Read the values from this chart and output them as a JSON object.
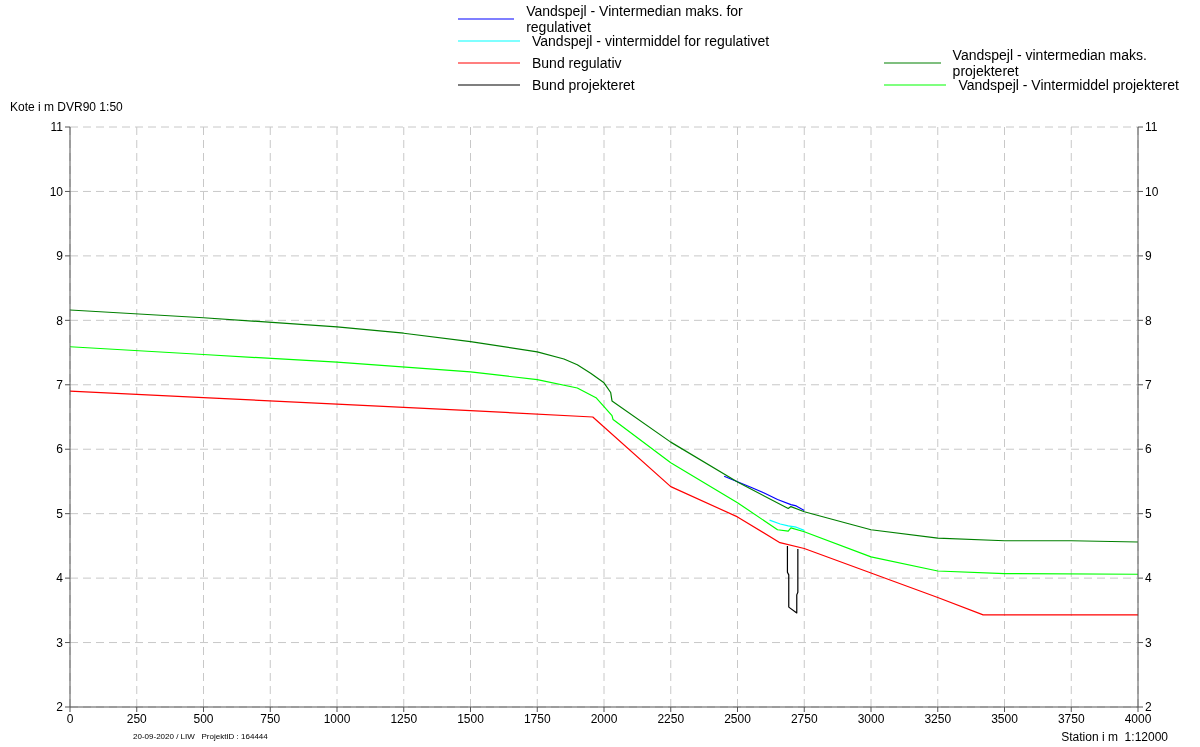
{
  "chart_data": {
    "type": "line",
    "ylabel": "Kote i m DVR90 1:50",
    "xlabel": "Station i m  1:12000",
    "annotations": [
      "20-09-2020 / LIW   ProjektID : 164444"
    ],
    "xlim": [
      0,
      4000
    ],
    "xticks": [
      0,
      250,
      500,
      750,
      1000,
      1250,
      1500,
      1750,
      2000,
      2250,
      2500,
      2750,
      3000,
      3250,
      3500,
      3750,
      4000
    ],
    "ylim": [
      2,
      11
    ],
    "yticks": [
      2,
      3,
      4,
      5,
      6,
      7,
      8,
      9,
      10,
      11
    ],
    "y2lim": [
      2,
      11
    ],
    "y2ticks": [
      2,
      3,
      4,
      5,
      6,
      7,
      8,
      9,
      10,
      11
    ],
    "grid": true,
    "legend": "top",
    "marker": "none",
    "line_style": "solid",
    "series": [
      {
        "name": "Vandspejl - Vintermedian maks. for regulativet",
        "color": "#0000ff",
        "x": [
          2450,
          2550,
          2600,
          2650,
          2700,
          2720,
          2750
        ],
        "values": [
          5.58,
          5.41,
          5.32,
          5.22,
          5.14,
          5.12,
          5.05
        ]
      },
      {
        "name": "Vandspejl - vintermiddel for regulativet",
        "color": "#00ffff",
        "x": [
          2620,
          2660,
          2690,
          2720,
          2750
        ],
        "values": [
          4.9,
          4.84,
          4.81,
          4.79,
          4.74
        ]
      },
      {
        "name": "Bund regulativ",
        "color": "#ff0000",
        "x": [
          0,
          500,
          1000,
          1500,
          1958,
          2250,
          2500,
          2659,
          2750,
          3000,
          3250,
          3420,
          4000
        ],
        "values": [
          6.9,
          6.8,
          6.7,
          6.6,
          6.5,
          5.42,
          4.95,
          4.55,
          4.46,
          4.08,
          3.7,
          3.43,
          3.43
        ]
      },
      {
        "name": "Bund projekteret",
        "color": "#000000",
        "x": [
          2687,
          2687,
          2692,
          2692,
          2722,
          2722,
          2726,
          2726
        ],
        "values": [
          4.5,
          4.09,
          4.05,
          3.55,
          3.46,
          3.74,
          3.78,
          4.45
        ]
      },
      {
        "name": "Vandspejl - vintermedian maks. projekteret",
        "color": "#008000",
        "x": [
          0,
          500,
          1000,
          1250,
          1500,
          1750,
          1850,
          1900,
          1950,
          2000,
          2025,
          2030,
          2250,
          2500,
          2690,
          2700,
          2750,
          2920,
          3000,
          3250,
          3500,
          3750,
          4000
        ],
        "values": [
          8.16,
          8.04,
          7.9,
          7.8,
          7.67,
          7.51,
          7.4,
          7.31,
          7.18,
          7.03,
          6.88,
          6.75,
          6.11,
          5.49,
          5.08,
          5.11,
          5.03,
          4.84,
          4.75,
          4.62,
          4.58,
          4.58,
          4.56
        ]
      },
      {
        "name": "Vandspejl - Vintermiddel projekteret",
        "color": "#00ff00",
        "x": [
          0,
          500,
          1000,
          1500,
          1750,
          1900,
          1970,
          2030,
          2034,
          2250,
          2500,
          2650,
          2690,
          2700,
          2750,
          3000,
          3250,
          3500,
          4000
        ],
        "values": [
          7.59,
          7.47,
          7.35,
          7.2,
          7.08,
          6.95,
          6.8,
          6.52,
          6.46,
          5.79,
          5.17,
          4.75,
          4.73,
          4.78,
          4.72,
          4.33,
          4.11,
          4.07,
          4.06
        ]
      }
    ]
  }
}
